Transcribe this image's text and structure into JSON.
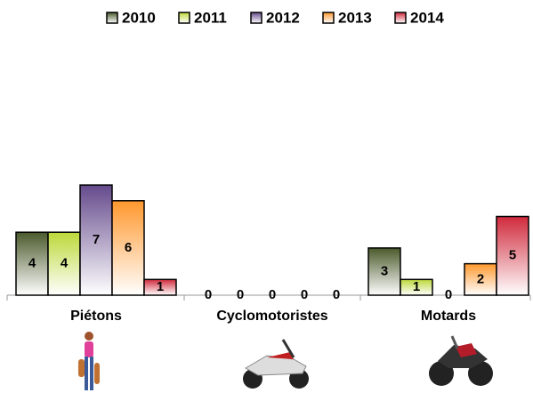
{
  "chart_data": {
    "type": "bar",
    "categories": [
      "Piétons",
      "Cyclomotoristes",
      "Motards"
    ],
    "series": [
      {
        "name": "2010",
        "color": "#4b5a2c",
        "values": [
          4,
          0,
          3
        ]
      },
      {
        "name": "2011",
        "color": "#bcd83a",
        "values": [
          4,
          0,
          1
        ]
      },
      {
        "name": "2012",
        "color": "#654a8c",
        "values": [
          7,
          0,
          0
        ]
      },
      {
        "name": "2013",
        "color": "#ff982e",
        "values": [
          6,
          0,
          2
        ]
      },
      {
        "name": "2014",
        "color": "#d02a3c",
        "values": [
          1,
          0,
          5
        ]
      }
    ],
    "legend": "top"
  }
}
